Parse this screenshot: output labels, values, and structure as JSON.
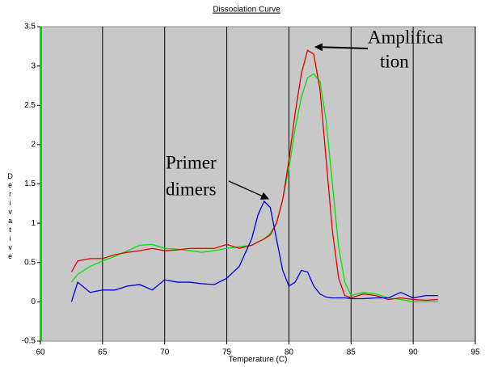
{
  "chart_data": {
    "type": "line",
    "title": "Dissociation Curve",
    "x_label": "Temperature (C)",
    "y_label": "Derivative",
    "xlim": [
      60,
      95
    ],
    "xticks": [
      60,
      65,
      70,
      75,
      80,
      85,
      90,
      95
    ],
    "ylim": [
      -0.5,
      3.5
    ],
    "yticks": [
      -0.5,
      0,
      0.5,
      1,
      1.5,
      2,
      2.5,
      3,
      3.5
    ],
    "grid": "x",
    "x": [
      62.5,
      63,
      64,
      65,
      66,
      67,
      68,
      69,
      70,
      71,
      72,
      73,
      74,
      75,
      76,
      77,
      77.5,
      78,
      78.5,
      79,
      79.5,
      80,
      80.5,
      81,
      81.5,
      82,
      82.5,
      83,
      83.5,
      84,
      84.5,
      85,
      86,
      87,
      88,
      89,
      90,
      91,
      92
    ],
    "series": [
      {
        "color": "#00e000",
        "values": [
          0.25,
          0.35,
          0.45,
          0.52,
          0.58,
          0.65,
          0.72,
          0.73,
          0.68,
          0.67,
          0.65,
          0.63,
          0.65,
          0.68,
          0.7,
          0.72,
          0.76,
          0.8,
          0.87,
          1.0,
          1.3,
          1.7,
          2.2,
          2.6,
          2.85,
          2.9,
          2.8,
          2.3,
          1.5,
          0.7,
          0.25,
          0.08,
          0.12,
          0.1,
          0.05,
          0.03,
          0.0,
          0.0,
          0.0
        ]
      },
      {
        "color": "#e00000",
        "values": [
          0.38,
          0.52,
          0.55,
          0.55,
          0.6,
          0.63,
          0.65,
          0.68,
          0.65,
          0.66,
          0.68,
          0.68,
          0.68,
          0.73,
          0.68,
          0.72,
          0.76,
          0.8,
          0.85,
          1.0,
          1.3,
          1.8,
          2.4,
          2.9,
          3.2,
          3.15,
          2.7,
          1.8,
          0.9,
          0.3,
          0.08,
          0.05,
          0.1,
          0.08,
          0.03,
          0.05,
          0.03,
          0.02,
          0.03
        ]
      },
      {
        "color": "#0000e0",
        "values": [
          0.0,
          0.25,
          0.12,
          0.15,
          0.15,
          0.2,
          0.22,
          0.15,
          0.28,
          0.25,
          0.25,
          0.23,
          0.22,
          0.3,
          0.45,
          0.8,
          1.1,
          1.28,
          1.2,
          0.8,
          0.4,
          0.2,
          0.25,
          0.4,
          0.38,
          0.2,
          0.1,
          0.06,
          0.05,
          0.05,
          0.05,
          0.04,
          0.04,
          0.05,
          0.05,
          0.12,
          0.05,
          0.08,
          0.08
        ]
      }
    ],
    "annotations": [
      {
        "lines": [
          "Amplifica",
          "tion"
        ]
      },
      {
        "lines": [
          "Primer",
          "dimers"
        ]
      }
    ]
  }
}
